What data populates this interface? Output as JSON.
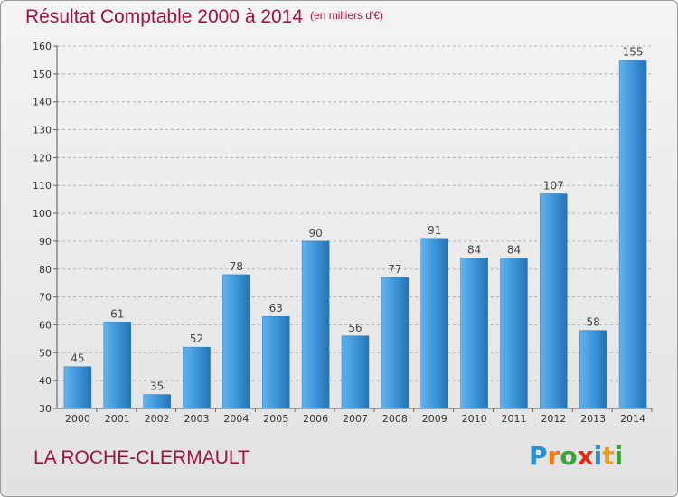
{
  "header": {
    "title": "Résultat Comptable 2000 à 2014",
    "subtitle": "(en milliers d'€)"
  },
  "footer": {
    "commune": "LA ROCHE-CLERMAULT",
    "logo_letters": [
      "P",
      "r",
      "o",
      "x",
      "i",
      "t",
      "i"
    ],
    "logo_colors": [
      "#2a8fd4",
      "#f07d12",
      "#3aa53a",
      "#e3261a",
      "#2a8fd4",
      "#f0a012",
      "#3aa53a"
    ]
  },
  "chart_data": {
    "type": "bar",
    "title": "Résultat Comptable 2000 à 2014",
    "subtitle": "(en milliers d'€)",
    "xlabel": "",
    "ylabel": "",
    "categories": [
      "2000",
      "2001",
      "2002",
      "2003",
      "2004",
      "2005",
      "2006",
      "2007",
      "2008",
      "2009",
      "2010",
      "2011",
      "2012",
      "2013",
      "2014"
    ],
    "values": [
      45,
      61,
      35,
      52,
      78,
      63,
      90,
      56,
      77,
      91,
      84,
      84,
      107,
      58,
      155
    ],
    "ylim": [
      30,
      160
    ],
    "yticks": [
      30,
      40,
      50,
      60,
      70,
      80,
      90,
      100,
      110,
      120,
      130,
      140,
      150,
      160
    ],
    "grid": true,
    "bar_color": "#3a93d6",
    "bar_color_light": "#62b3ee",
    "bar_color_dark": "#2572b5"
  }
}
